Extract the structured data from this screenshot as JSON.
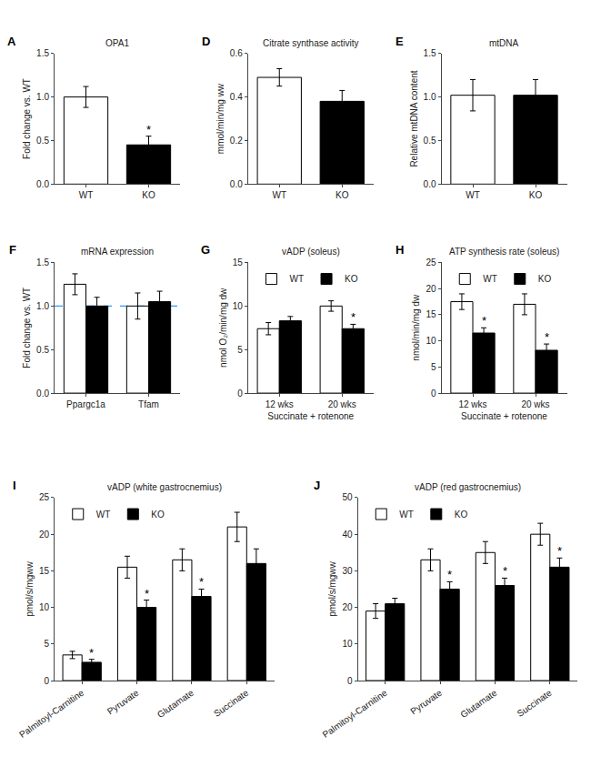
{
  "chart_data": [
    {
      "type": "bar",
      "title": "OPA1",
      "categories": [
        "WT",
        "KO"
      ],
      "values": [
        1.0,
        0.45
      ],
      "errors": [
        0.12,
        0.1
      ],
      "colors": [
        "white",
        "black"
      ],
      "ylabel": "Fold change vs. WT",
      "ylim": [
        0,
        1.5
      ],
      "yticks": [
        {
          "value": 0.0,
          "label": "0.0"
        },
        {
          "value": 0.5,
          "label": "0.5"
        },
        {
          "value": 1.0,
          "label": "1.0"
        },
        {
          "value": 1.5,
          "label": "1.5"
        }
      ],
      "grid": false,
      "annotations": [
        {
          "text": "A"
        },
        {
          "text": "*",
          "category": "KO"
        }
      ]
    },
    {
      "type": "bar",
      "title": "Citrate synthase activity",
      "categories": [
        "WT",
        "KO"
      ],
      "values": [
        0.49,
        0.38
      ],
      "errors": [
        0.04,
        0.05
      ],
      "colors": [
        "white",
        "black"
      ],
      "ylabel": "mmol/min/mg ww",
      "ylim": [
        0,
        0.6
      ],
      "yticks": [
        {
          "value": 0.0,
          "label": "0.0"
        },
        {
          "value": 0.2,
          "label": "0.2"
        },
        {
          "value": 0.4,
          "label": "0.4"
        },
        {
          "value": 0.6,
          "label": "0.6"
        }
      ],
      "grid": false,
      "annotations": [
        {
          "text": "D"
        }
      ]
    },
    {
      "type": "bar",
      "title": "mtDNA",
      "categories": [
        "WT",
        "KO"
      ],
      "values": [
        1.02,
        1.02
      ],
      "errors": [
        0.18,
        0.18
      ],
      "colors": [
        "white",
        "black"
      ],
      "ylabel": "Relative mtDNA content",
      "ylim": [
        0,
        1.5
      ],
      "yticks": [
        {
          "value": 0.0,
          "label": "0.0"
        },
        {
          "value": 0.5,
          "label": "0.5"
        },
        {
          "value": 1.0,
          "label": "1.0"
        },
        {
          "value": 1.5,
          "label": "1.5"
        }
      ],
      "grid": false,
      "annotations": [
        {
          "text": "E"
        }
      ]
    },
    {
      "type": "bar",
      "title": "mRNA expression",
      "categories": [
        "Ppargc1a",
        "Tfam"
      ],
      "series": [
        {
          "color": "white",
          "values": [
            1.25,
            1.0
          ],
          "errors": [
            0.12,
            0.15
          ]
        },
        {
          "color": "black",
          "values": [
            1.0,
            1.05
          ],
          "errors": [
            0.1,
            0.12
          ]
        }
      ],
      "hline": {
        "value": 1.0,
        "color": "#3399ff",
        "line_style": "dashed"
      },
      "ylabel": "Fold change vs. WT",
      "ylim": [
        0,
        1.5
      ],
      "yticks": [
        {
          "value": 0.0,
          "label": "0.0"
        },
        {
          "value": 0.5,
          "label": "0.5"
        },
        {
          "value": 1.0,
          "label": "1.0"
        },
        {
          "value": 1.5,
          "label": "1.5"
        }
      ],
      "grid": false,
      "annotations": [
        {
          "text": "F"
        }
      ]
    },
    {
      "type": "bar",
      "title": "vADP (soleus)",
      "categories": [
        "12 wks",
        "20 wks"
      ],
      "series": [
        {
          "name": "WT",
          "color": "white",
          "values": [
            7.4,
            10.0
          ],
          "errors": [
            0.7,
            0.6
          ]
        },
        {
          "name": "KO",
          "color": "black",
          "values": [
            8.3,
            7.4
          ],
          "errors": [
            0.5,
            0.5
          ]
        }
      ],
      "xlabel": "Succinate + rotenone",
      "ylabel": "nmol O₂/min/mg dw",
      "ylim": [
        0,
        15
      ],
      "yticks": [
        0,
        5,
        10,
        15
      ],
      "grid": false,
      "legend": "upper left",
      "annotations": [
        {
          "text": "G"
        },
        {
          "text": "*",
          "category": "20 wks",
          "series": "KO"
        }
      ]
    },
    {
      "type": "bar",
      "title": "ATP synthesis rate (soleus)",
      "categories": [
        "12 wks",
        "20 wks"
      ],
      "series": [
        {
          "name": "WT",
          "color": "white",
          "values": [
            17.5,
            17.0
          ],
          "errors": [
            1.5,
            2.0
          ]
        },
        {
          "name": "KO",
          "color": "black",
          "values": [
            11.5,
            8.2
          ],
          "errors": [
            1.0,
            1.2
          ]
        }
      ],
      "xlabel": "Succinate + rotenone",
      "ylabel": "nmol/min/mg dw",
      "ylim": [
        0,
        25
      ],
      "yticks": [
        0,
        5,
        10,
        15,
        20,
        25
      ],
      "grid": false,
      "legend": "upper left",
      "annotations": [
        {
          "text": "H"
        },
        {
          "text": "*",
          "category": "12 wks",
          "series": "KO"
        },
        {
          "text": "*",
          "category": "20 wks",
          "series": "KO"
        }
      ]
    },
    {
      "type": "bar",
      "title": "vADP (white gastrocnemius)",
      "categories": [
        "Palmitoyl-Carnitine",
        "Pyruvate",
        "Glutamate",
        "Succinate"
      ],
      "series": [
        {
          "name": "WT",
          "color": "white",
          "values": [
            3.5,
            15.5,
            16.5,
            21.0
          ],
          "errors": [
            0.5,
            1.5,
            1.5,
            2.0
          ]
        },
        {
          "name": "KO",
          "color": "black",
          "values": [
            2.5,
            10.0,
            11.5,
            16.0
          ],
          "errors": [
            0.4,
            1.0,
            1.0,
            2.0
          ]
        }
      ],
      "ylabel": "pmol/s/mgww",
      "ylim": [
        0,
        25
      ],
      "yticks": [
        0,
        5,
        10,
        15,
        20,
        25
      ],
      "grid": false,
      "legend": "upper left",
      "annotations": [
        {
          "text": "I"
        },
        {
          "text": "*",
          "category": "Palmitoyl-Carnitine",
          "series": "KO"
        },
        {
          "text": "*",
          "category": "Pyruvate",
          "series": "KO"
        },
        {
          "text": "*",
          "category": "Glutamate",
          "series": "KO"
        }
      ]
    },
    {
      "type": "bar",
      "title": "vADP (red gastrocnemius)",
      "categories": [
        "Palmitoyl-Carnitine",
        "Pyruvate",
        "Glutamate",
        "Succinate"
      ],
      "series": [
        {
          "name": "WT",
          "color": "white",
          "values": [
            19.0,
            33.0,
            35.0,
            40.0
          ],
          "errors": [
            2.0,
            3.0,
            3.0,
            3.0
          ]
        },
        {
          "name": "KO",
          "color": "black",
          "values": [
            21.0,
            25.0,
            26.0,
            31.0
          ],
          "errors": [
            1.5,
            2.0,
            2.0,
            2.5
          ]
        }
      ],
      "ylabel": "pmol/s/mgww",
      "ylim": [
        0,
        50
      ],
      "yticks": [
        0,
        10,
        20,
        30,
        40,
        50
      ],
      "grid": false,
      "legend": "upper left",
      "annotations": [
        {
          "text": "J"
        },
        {
          "text": "*",
          "category": "Pyruvate",
          "series": "KO"
        },
        {
          "text": "*",
          "category": "Glutamate",
          "series": "KO"
        },
        {
          "text": "*",
          "category": "Succinate",
          "series": "KO"
        }
      ]
    }
  ]
}
